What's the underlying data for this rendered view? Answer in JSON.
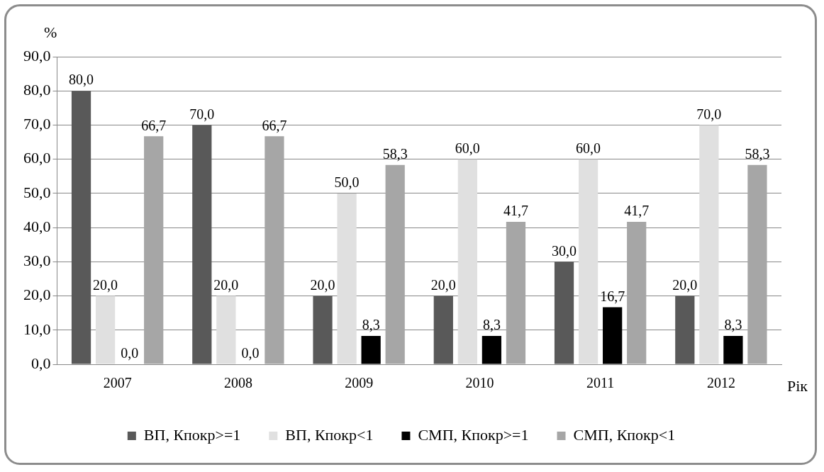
{
  "chart_data": {
    "type": "bar",
    "ylabel": "%",
    "xlabel": "Рік",
    "categories": [
      "2007",
      "2008",
      "2009",
      "2010",
      "2011",
      "2012"
    ],
    "series": [
      {
        "name": "ВП, Кпокр>=1",
        "color": "#595959",
        "values": [
          80,
          70,
          20,
          20,
          30,
          20
        ],
        "value_labels": [
          "80,0",
          "70,0",
          "20,0",
          "20,0",
          "30,0",
          "20,0"
        ]
      },
      {
        "name": "ВП, Кпокр<1",
        "color": "#e0e0e0",
        "values": [
          20,
          20,
          50,
          60,
          60,
          70
        ],
        "value_labels": [
          "20,0",
          "20,0",
          "50,0",
          "60,0",
          "60,0",
          "70,0"
        ]
      },
      {
        "name": "СМП, Кпокр>=1",
        "color": "#000000",
        "values": [
          0,
          0,
          8.3,
          8.3,
          16.7,
          8.3
        ],
        "value_labels": [
          "0,0",
          "0,0",
          "8,3",
          "8,3",
          "16,7",
          "8,3"
        ]
      },
      {
        "name": "СМП, Кпокр<1",
        "color": "#a6a6a6",
        "values": [
          66.7,
          66.7,
          58.3,
          41.7,
          41.7,
          58.3
        ],
        "value_labels": [
          "66,7",
          "66,7",
          "58,3",
          "41,7",
          "41,7",
          "58,3"
        ]
      }
    ],
    "ylim": [
      0,
      90
    ],
    "yticks": [
      {
        "value": 0,
        "label": "0,0"
      },
      {
        "value": 10,
        "label": "10,0"
      },
      {
        "value": 20,
        "label": "20,0"
      },
      {
        "value": 30,
        "label": "30,0"
      },
      {
        "value": 40,
        "label": "40,0"
      },
      {
        "value": 50,
        "label": "50,0"
      },
      {
        "value": 60,
        "label": "60,0"
      },
      {
        "value": 70,
        "label": "70,0"
      },
      {
        "value": 80,
        "label": "80,0"
      },
      {
        "value": 90,
        "label": "90,0"
      }
    ],
    "grid": "y",
    "legend": "bottom"
  }
}
